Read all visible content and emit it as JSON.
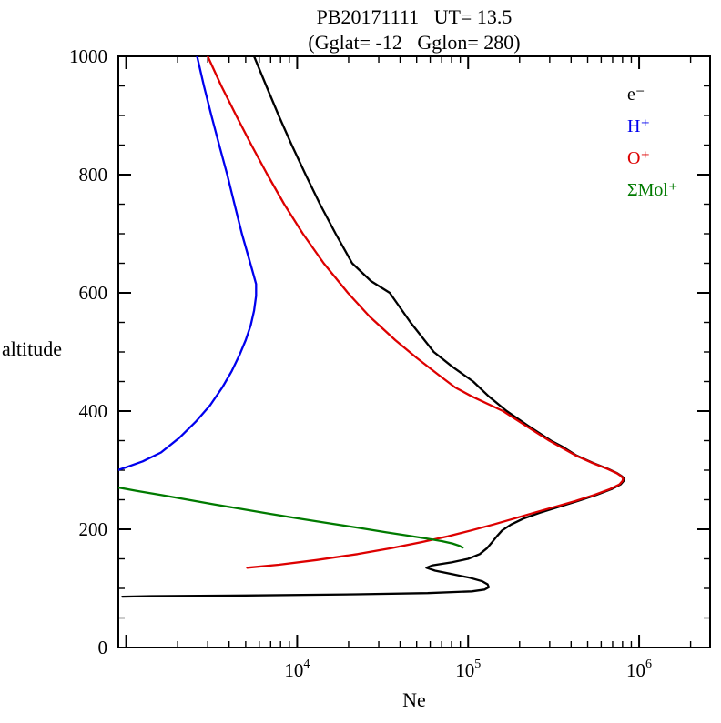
{
  "chart_data": {
    "type": "line",
    "title": "PB20171111   UT= 13.5",
    "subtitle": "(Gglat= -12   Gglon= 280)",
    "xlabel": "Ne",
    "ylabel": "altitude",
    "x_scale": "log",
    "xlim": [
      900,
      2600000
    ],
    "ylim": [
      0,
      1000
    ],
    "y_tick_major": 200,
    "y_tick_minor": 50,
    "x_labeled_exponents": [
      4,
      5,
      6
    ],
    "grid": false,
    "legend_position": "inside-top-right",
    "frame_color": "#000000",
    "series": [
      {
        "id": "e",
        "label": "e⁻",
        "color": "#000000",
        "points_ne_alt": [
          [
            5600,
            1000
          ],
          [
            6600,
            950
          ],
          [
            7800,
            900
          ],
          [
            9300,
            850
          ],
          [
            11200,
            800
          ],
          [
            13600,
            750
          ],
          [
            16800,
            700
          ],
          [
            21000,
            650
          ],
          [
            27000,
            620
          ],
          [
            34800,
            600
          ],
          [
            46000,
            550
          ],
          [
            63000,
            500
          ],
          [
            81000,
            475
          ],
          [
            107000,
            450
          ],
          [
            132000,
            425
          ],
          [
            168000,
            400
          ],
          [
            225000,
            375
          ],
          [
            305000,
            350
          ],
          [
            355000,
            340
          ],
          [
            430000,
            325
          ],
          [
            540000,
            312
          ],
          [
            660000,
            302
          ],
          [
            745000,
            295
          ],
          [
            790000,
            290
          ],
          [
            820000,
            286
          ],
          [
            812000,
            282
          ],
          [
            780000,
            276
          ],
          [
            690000,
            268
          ],
          [
            560000,
            258
          ],
          [
            440000,
            248
          ],
          [
            340000,
            238
          ],
          [
            263000,
            228
          ],
          [
            210000,
            218
          ],
          [
            178000,
            208
          ],
          [
            158000,
            198
          ],
          [
            147000,
            188
          ],
          [
            138000,
            178
          ],
          [
            129000,
            168
          ],
          [
            117000,
            158
          ],
          [
            100000,
            150
          ],
          [
            80000,
            144
          ],
          [
            62000,
            139
          ],
          [
            57000,
            135
          ],
          [
            64000,
            130
          ],
          [
            81000,
            124
          ],
          [
            102000,
            118
          ],
          [
            121000,
            112
          ],
          [
            130000,
            107
          ],
          [
            132000,
            102
          ],
          [
            125000,
            98
          ],
          [
            105000,
            95
          ],
          [
            58000,
            92
          ],
          [
            22000,
            90
          ],
          [
            5000,
            88
          ],
          [
            1400,
            87
          ],
          [
            950,
            86
          ]
        ]
      },
      {
        "id": "h",
        "label": "H⁺",
        "color": "#0000ee",
        "points_ne_alt": [
          [
            2600,
            1000
          ],
          [
            2850,
            950
          ],
          [
            3150,
            900
          ],
          [
            3500,
            850
          ],
          [
            3900,
            800
          ],
          [
            4300,
            750
          ],
          [
            4750,
            700
          ],
          [
            5200,
            660
          ],
          [
            5500,
            635
          ],
          [
            5750,
            615
          ],
          [
            5750,
            595
          ],
          [
            5600,
            570
          ],
          [
            5350,
            545
          ],
          [
            5000,
            520
          ],
          [
            4600,
            495
          ],
          [
            4150,
            468
          ],
          [
            3650,
            440
          ],
          [
            3100,
            410
          ],
          [
            2550,
            382
          ],
          [
            2050,
            355
          ],
          [
            1600,
            330
          ],
          [
            1250,
            315
          ],
          [
            1000,
            305
          ],
          [
            850,
            298
          ],
          [
            780,
            296
          ]
        ]
      },
      {
        "id": "o",
        "label": "O⁺",
        "color": "#dd0000",
        "points_ne_alt": [
          [
            3000,
            1000
          ],
          [
            3600,
            950
          ],
          [
            4400,
            900
          ],
          [
            5400,
            850
          ],
          [
            6700,
            800
          ],
          [
            8400,
            750
          ],
          [
            10800,
            700
          ],
          [
            14300,
            650
          ],
          [
            19800,
            600
          ],
          [
            26500,
            560
          ],
          [
            37500,
            520
          ],
          [
            50000,
            490
          ],
          [
            68000,
            460
          ],
          [
            84000,
            440
          ],
          [
            105000,
            425
          ],
          [
            160000,
            400
          ],
          [
            218000,
            375
          ],
          [
            298000,
            350
          ],
          [
            425000,
            325
          ],
          [
            535000,
            312
          ],
          [
            655000,
            302
          ],
          [
            740000,
            295
          ],
          [
            785000,
            290
          ],
          [
            805000,
            286
          ],
          [
            800000,
            282
          ],
          [
            768000,
            276
          ],
          [
            676000,
            268
          ],
          [
            545000,
            258
          ],
          [
            425000,
            248
          ],
          [
            322000,
            238
          ],
          [
            243000,
            228
          ],
          [
            185000,
            218
          ],
          [
            140000,
            208
          ],
          [
            104000,
            198
          ],
          [
            76000,
            188
          ],
          [
            53000,
            178
          ],
          [
            35500,
            168
          ],
          [
            22500,
            158
          ],
          [
            13000,
            148
          ],
          [
            7800,
            140
          ],
          [
            5100,
            135
          ]
        ]
      },
      {
        "id": "mol",
        "label": "ΣMol⁺",
        "color": "#007a00",
        "points_ne_alt": [
          [
            850,
            272
          ],
          [
            1150,
            265
          ],
          [
            1600,
            258
          ],
          [
            2300,
            250
          ],
          [
            3300,
            242
          ],
          [
            4800,
            234
          ],
          [
            7000,
            226
          ],
          [
            10300,
            218
          ],
          [
            15500,
            210
          ],
          [
            23500,
            202
          ],
          [
            33000,
            195
          ],
          [
            45000,
            189
          ],
          [
            58000,
            184
          ],
          [
            70000,
            180
          ],
          [
            81000,
            176
          ],
          [
            89000,
            172
          ],
          [
            93000,
            169
          ]
        ]
      }
    ],
    "y_tick_labels": [
      "0",
      "200",
      "400",
      "600",
      "800",
      "1000"
    ],
    "x_tick_labels": [
      "10^4",
      "10^5",
      "10^6"
    ]
  }
}
